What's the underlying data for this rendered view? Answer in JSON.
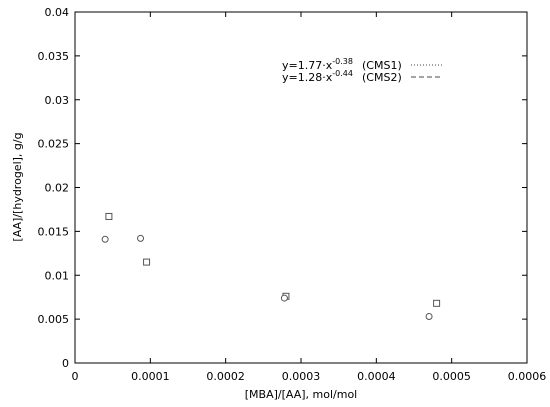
{
  "chart_data": {
    "type": "scatter",
    "title": "",
    "xlabel": "[MBA]/[AA], mol/mol",
    "ylabel": "[AA]/[hydrogel], g/g",
    "xlim": [
      0,
      0.0006
    ],
    "ylim": [
      0,
      0.04
    ],
    "x_ticks": [
      0,
      0.0001,
      0.0002,
      0.0003,
      0.0004,
      0.0005,
      0.0006
    ],
    "x_tick_labels": [
      "0",
      "0.0001",
      "0.0002",
      "0.0003",
      "0.0004",
      "0.0005",
      "0.0006"
    ],
    "y_ticks": [
      0,
      0.005,
      0.01,
      0.015,
      0.02,
      0.025,
      0.03,
      0.035,
      0.04
    ],
    "y_tick_labels": [
      "0",
      "0.005",
      "0.01",
      "0.015",
      "0.02",
      "0.025",
      "0.03",
      "0.035",
      "0.04"
    ],
    "grid": false,
    "legend_position": "top-right",
    "series": [
      {
        "name": "CMS1",
        "marker": "square",
        "x": [
          4.5e-05,
          9.5e-05,
          0.00028,
          0.00048
        ],
        "y": [
          0.0167,
          0.0115,
          0.0076,
          0.0068
        ]
      },
      {
        "name": "CMS2",
        "marker": "circle",
        "x": [
          4e-05,
          8.7e-05,
          0.000278,
          0.00047
        ],
        "y": [
          0.0141,
          0.0142,
          0.0074,
          0.0053
        ]
      }
    ],
    "fits": [
      {
        "series": "CMS1",
        "style": "dotted",
        "equation_main": "y=1.77·x",
        "equation_exp": "-0.38",
        "label": "(CMS1)",
        "a": 1.77,
        "b": -0.38
      },
      {
        "series": "CMS2",
        "style": "dashed",
        "equation_main": "y=1.28·x",
        "equation_exp": "-0.44",
        "label": "(CMS2)",
        "a": 1.28,
        "b": -0.44
      }
    ]
  }
}
